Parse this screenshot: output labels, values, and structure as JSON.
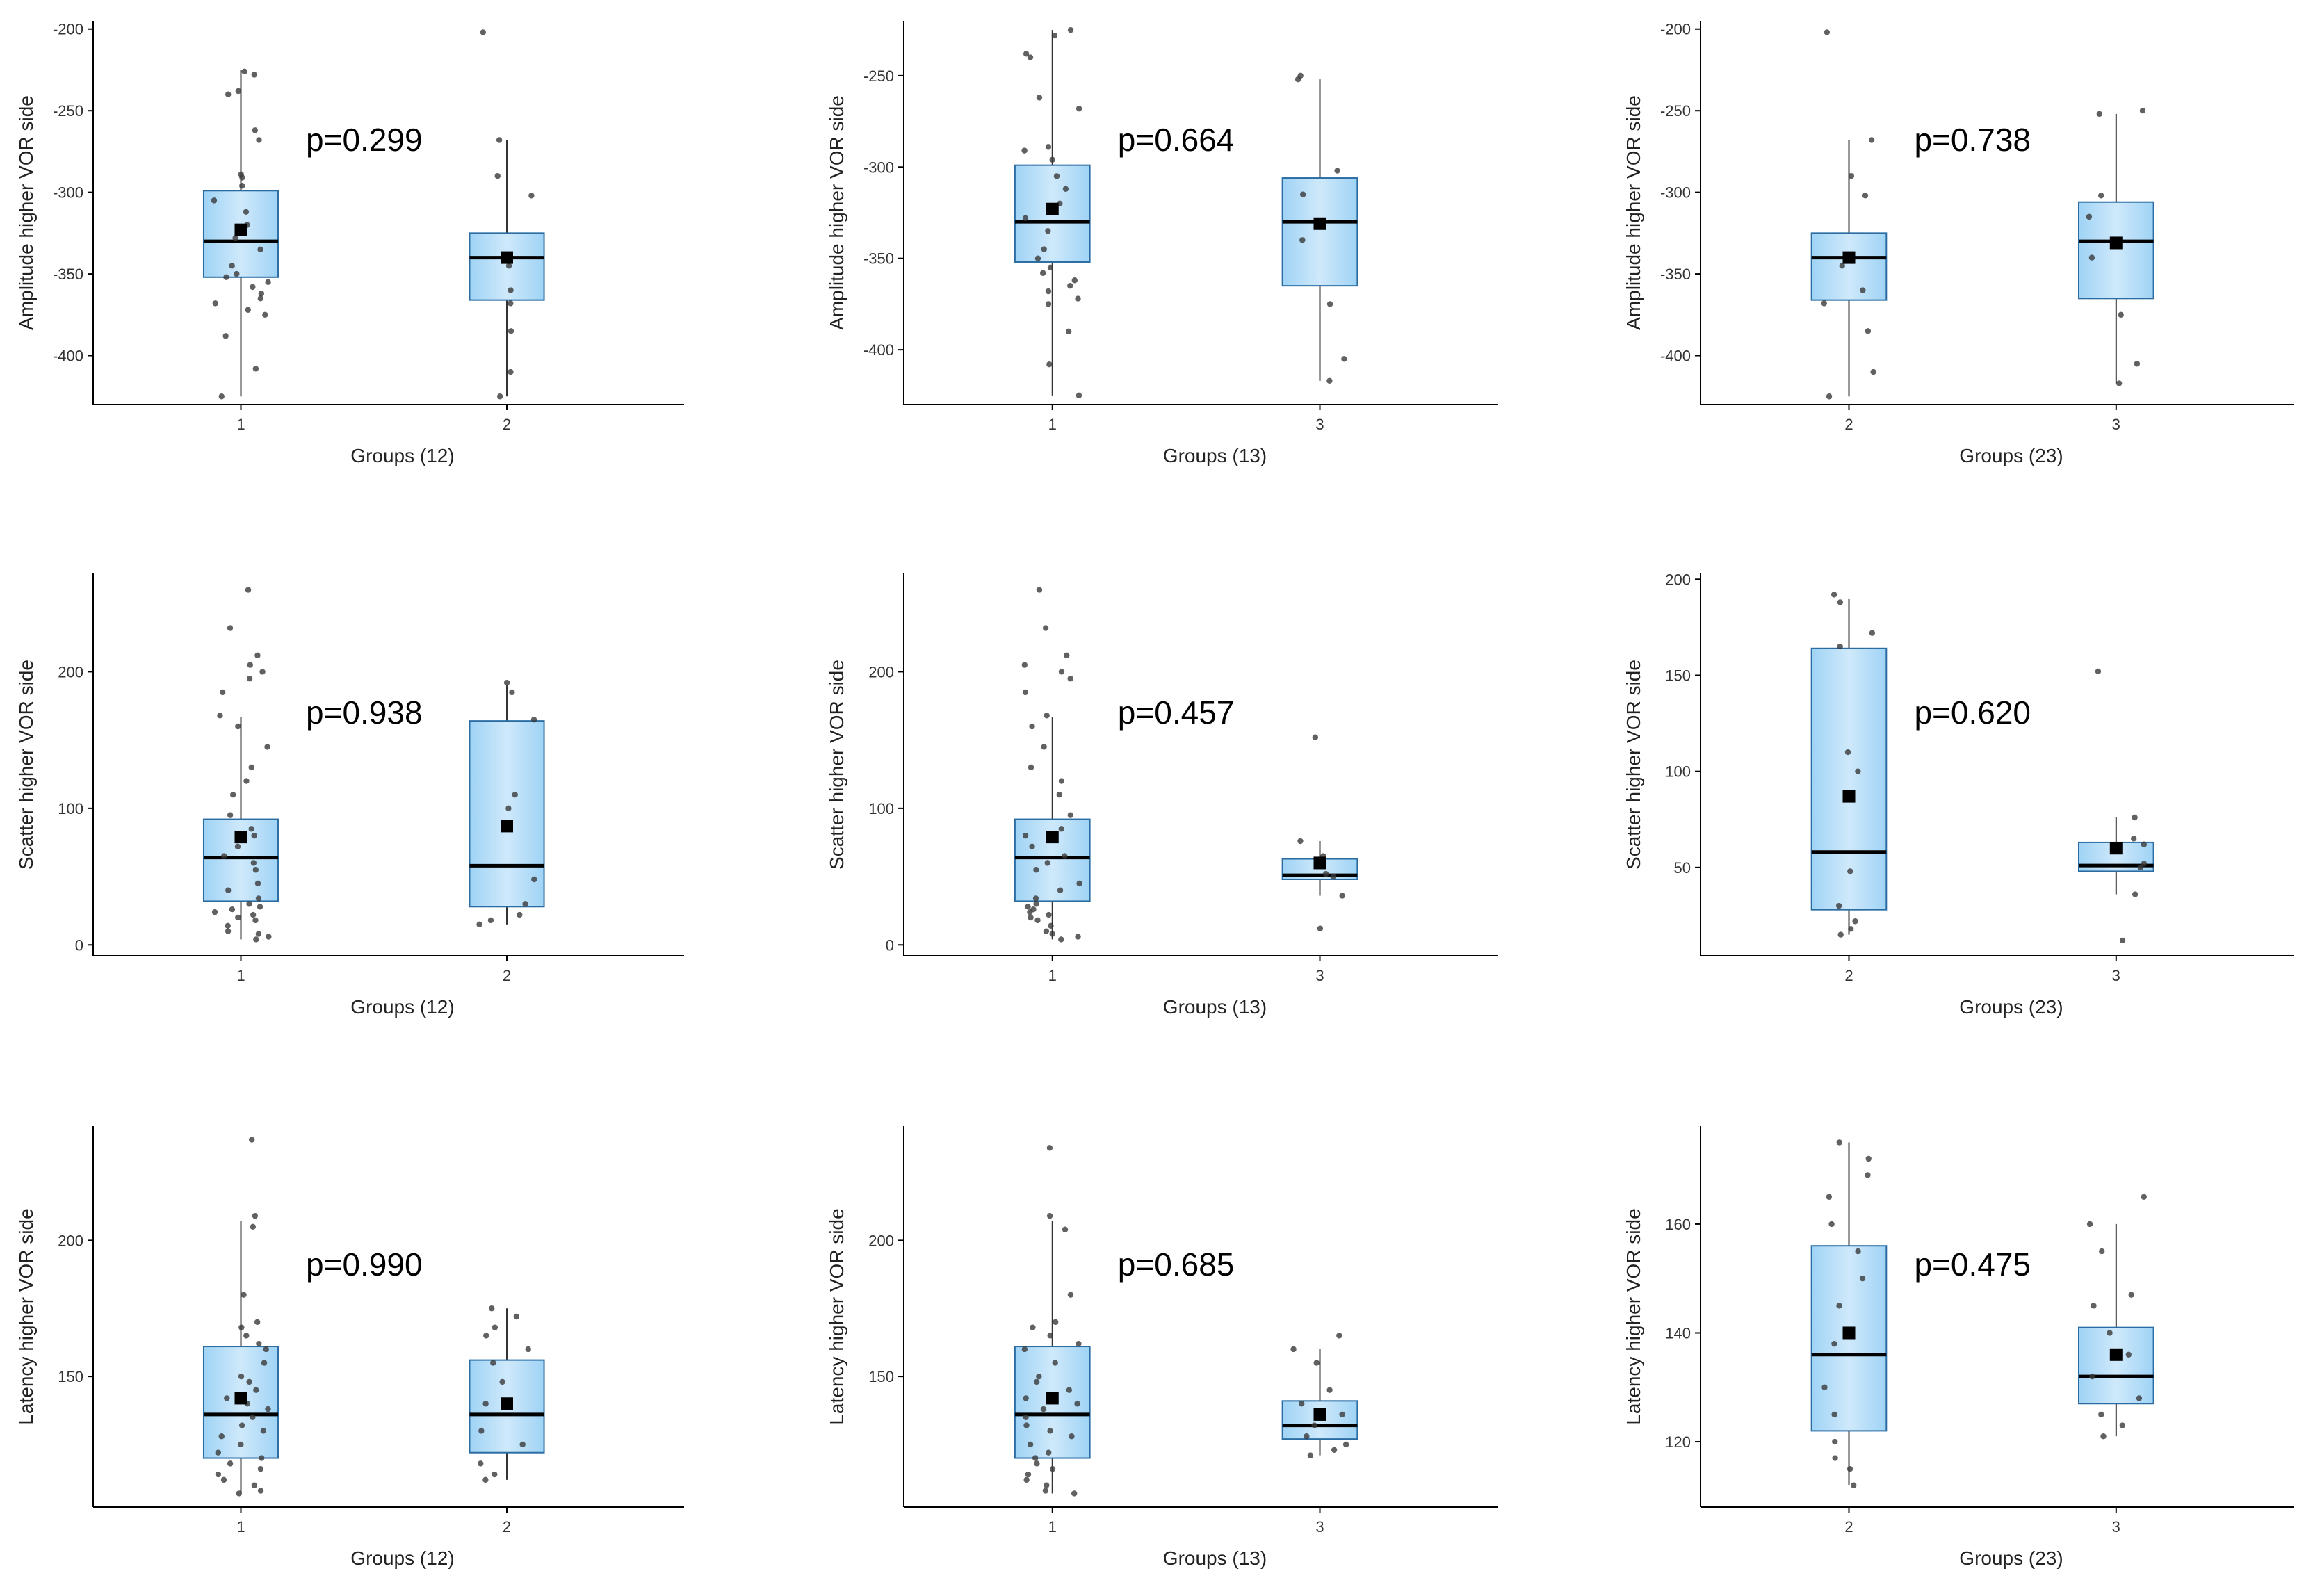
{
  "chart_data": [
    {
      "type": "box",
      "title": "",
      "xlabel": "Groups (12)",
      "ylabel": "Amplitude higher VOR side",
      "ylim": [
        -430,
        -195
      ],
      "yticks": [
        -200,
        -250,
        -300,
        -350,
        -400
      ],
      "ytick_labels": [
        "-200",
        "-250",
        "-300",
        "-350",
        "-400"
      ],
      "categories": [
        "1",
        "2"
      ],
      "p_value": "p=0.299",
      "boxes": [
        {
          "q1": -352,
          "median": -330,
          "q3": -299,
          "whisker_low": -425,
          "whisker_high": -225,
          "mean": -323,
          "points": [
            -228,
            -226,
            -238,
            -240,
            -268,
            -262,
            -289,
            -291,
            -296,
            -305,
            -312,
            -320,
            -328,
            -335,
            -345,
            -350,
            -352,
            -355,
            -358,
            -362,
            -365,
            -368,
            -372,
            -375,
            -388,
            -408,
            -425
          ]
        },
        {
          "q1": -366,
          "median": -340,
          "q3": -325,
          "whisker_low": -425,
          "whisker_high": -268,
          "mean": -340,
          "points": [
            -202,
            -268,
            -290,
            -302,
            -345,
            -360,
            -368,
            -385,
            -410,
            -425
          ]
        }
      ]
    },
    {
      "type": "box",
      "title": "",
      "xlabel": "Groups (13)",
      "ylabel": "Amplitude higher VOR side",
      "ylim": [
        -430,
        -220
      ],
      "yticks": [
        -250,
        -300,
        -350,
        -400
      ],
      "ytick_labels": [
        "-250",
        "-300",
        "-350",
        "-400"
      ],
      "categories": [
        "1",
        "3"
      ],
      "p_value": "p=0.664",
      "boxes": [
        {
          "q1": -352,
          "median": -330,
          "q3": -299,
          "whisker_low": -425,
          "whisker_high": -225,
          "mean": -323,
          "points": [
            -225,
            -228,
            -238,
            -240,
            -262,
            -268,
            -289,
            -291,
            -296,
            -305,
            -312,
            -320,
            -328,
            -335,
            -345,
            -350,
            -355,
            -358,
            -362,
            -365,
            -368,
            -372,
            -375,
            -390,
            -408,
            -425
          ]
        },
        {
          "q1": -365,
          "median": -330,
          "q3": -306,
          "whisker_low": -417,
          "whisker_high": -252,
          "mean": -331,
          "points": [
            -250,
            -252,
            -302,
            -315,
            -340,
            -375,
            -405,
            -417
          ]
        }
      ]
    },
    {
      "type": "box",
      "title": "",
      "xlabel": "Groups (23)",
      "ylabel": "Amplitude higher VOR side",
      "ylim": [
        -430,
        -195
      ],
      "yticks": [
        -200,
        -250,
        -300,
        -350,
        -400
      ],
      "ytick_labels": [
        "-200",
        "-250",
        "-300",
        "-350",
        "-400"
      ],
      "categories": [
        "2",
        "3"
      ],
      "p_value": "p=0.738",
      "boxes": [
        {
          "q1": -366,
          "median": -340,
          "q3": -325,
          "whisker_low": -425,
          "whisker_high": -268,
          "mean": -340,
          "points": [
            -202,
            -268,
            -290,
            -302,
            -345,
            -360,
            -368,
            -385,
            -410,
            -425
          ]
        },
        {
          "q1": -365,
          "median": -330,
          "q3": -306,
          "whisker_low": -417,
          "whisker_high": -252,
          "mean": -331,
          "points": [
            -250,
            -252,
            -302,
            -315,
            -340,
            -375,
            -405,
            -417
          ]
        }
      ]
    },
    {
      "type": "box",
      "title": "",
      "xlabel": "Groups (12)",
      "ylabel": "Scatter higher VOR side",
      "ylim": [
        -8,
        272
      ],
      "yticks": [
        0,
        100,
        200
      ],
      "ytick_labels": [
        "0",
        "100",
        "200"
      ],
      "categories": [
        "1",
        "2"
      ],
      "p_value": "p=0.938",
      "boxes": [
        {
          "q1": 32,
          "median": 64,
          "q3": 92,
          "whisker_low": 4,
          "whisker_high": 167,
          "mean": 79,
          "points": [
            4,
            6,
            8,
            10,
            14,
            18,
            20,
            22,
            24,
            26,
            28,
            30,
            34,
            40,
            45,
            55,
            60,
            65,
            72,
            80,
            85,
            95,
            110,
            120,
            130,
            145,
            160,
            168,
            185,
            195,
            200,
            205,
            212,
            232,
            260
          ]
        },
        {
          "q1": 28,
          "median": 58,
          "q3": 164,
          "whisker_low": 15,
          "whisker_high": 190,
          "mean": 87,
          "points": [
            15,
            18,
            22,
            30,
            48,
            100,
            110,
            165,
            185,
            192
          ]
        }
      ]
    },
    {
      "type": "box",
      "title": "",
      "xlabel": "Groups (13)",
      "ylabel": "Scatter higher VOR side",
      "ylim": [
        -8,
        272
      ],
      "yticks": [
        0,
        100,
        200
      ],
      "ytick_labels": [
        "0",
        "100",
        "200"
      ],
      "categories": [
        "1",
        "3"
      ],
      "p_value": "p=0.457",
      "boxes": [
        {
          "q1": 32,
          "median": 64,
          "q3": 92,
          "whisker_low": 4,
          "whisker_high": 167,
          "mean": 79,
          "points": [
            4,
            6,
            8,
            10,
            14,
            18,
            20,
            22,
            24,
            26,
            28,
            30,
            34,
            40,
            45,
            55,
            60,
            65,
            72,
            80,
            85,
            95,
            110,
            120,
            130,
            145,
            160,
            168,
            185,
            195,
            200,
            205,
            212,
            232,
            260
          ]
        },
        {
          "q1": 48,
          "median": 51,
          "q3": 63,
          "whisker_low": 36,
          "whisker_high": 76,
          "mean": 60,
          "points": [
            12,
            36,
            50,
            52,
            62,
            65,
            76,
            152
          ]
        }
      ]
    },
    {
      "type": "box",
      "title": "",
      "xlabel": "Groups (23)",
      "ylabel": "Scatter higher VOR side",
      "ylim": [
        4,
        203
      ],
      "yticks": [
        50,
        100,
        150,
        200
      ],
      "ytick_labels": [
        "50",
        "100",
        "150",
        "200"
      ],
      "categories": [
        "2",
        "3"
      ],
      "p_value": "p=0.620",
      "boxes": [
        {
          "q1": 28,
          "median": 58,
          "q3": 164,
          "whisker_low": 15,
          "whisker_high": 190,
          "mean": 87,
          "points": [
            15,
            18,
            22,
            30,
            48,
            100,
            110,
            165,
            172,
            188,
            192
          ]
        },
        {
          "q1": 48,
          "median": 51,
          "q3": 63,
          "whisker_low": 36,
          "whisker_high": 76,
          "mean": 60,
          "points": [
            12,
            36,
            50,
            52,
            62,
            65,
            76,
            152
          ]
        }
      ]
    },
    {
      "type": "box",
      "title": "",
      "xlabel": "Groups (12)",
      "ylabel": "Latency higher VOR side",
      "ylim": [
        102,
        242
      ],
      "yticks": [
        150,
        200
      ],
      "ytick_labels": [
        "150",
        "200"
      ],
      "categories": [
        "1",
        "2"
      ],
      "p_value": "p=0.990",
      "boxes": [
        {
          "q1": 120,
          "median": 136,
          "q3": 161,
          "whisker_low": 107,
          "whisker_high": 207,
          "mean": 142,
          "points": [
            107,
            108,
            110,
            112,
            114,
            116,
            118,
            120,
            122,
            125,
            128,
            130,
            132,
            135,
            138,
            140,
            142,
            145,
            148,
            150,
            155,
            160,
            162,
            165,
            168,
            170,
            180,
            205,
            209,
            237
          ]
        },
        {
          "q1": 122,
          "median": 136,
          "q3": 156,
          "whisker_low": 112,
          "whisker_high": 175,
          "mean": 140,
          "points": [
            112,
            114,
            118,
            125,
            130,
            140,
            148,
            155,
            160,
            165,
            168,
            172,
            175
          ]
        }
      ]
    },
    {
      "type": "box",
      "title": "",
      "xlabel": "Groups (13)",
      "ylabel": "Latency higher VOR side",
      "ylim": [
        102,
        242
      ],
      "yticks": [
        150,
        200
      ],
      "ytick_labels": [
        "150",
        "200"
      ],
      "categories": [
        "1",
        "3"
      ],
      "p_value": "p=0.685",
      "boxes": [
        {
          "q1": 120,
          "median": 136,
          "q3": 161,
          "whisker_low": 107,
          "whisker_high": 207,
          "mean": 142,
          "points": [
            107,
            108,
            110,
            112,
            114,
            116,
            118,
            120,
            122,
            125,
            128,
            130,
            132,
            135,
            138,
            140,
            142,
            145,
            148,
            150,
            155,
            160,
            162,
            165,
            168,
            170,
            180,
            204,
            209,
            234
          ]
        },
        {
          "q1": 127,
          "median": 132,
          "q3": 141,
          "whisker_low": 121,
          "whisker_high": 160,
          "mean": 136,
          "points": [
            121,
            123,
            125,
            128,
            132,
            136,
            140,
            145,
            155,
            160,
            165
          ]
        }
      ]
    },
    {
      "type": "box",
      "title": "",
      "xlabel": "Groups (23)",
      "ylabel": "Latency higher VOR side",
      "ylim": [
        108,
        178
      ],
      "yticks": [
        120,
        140,
        160
      ],
      "ytick_labels": [
        "120",
        "140",
        "160"
      ],
      "categories": [
        "2",
        "3"
      ],
      "p_value": "p=0.475",
      "boxes": [
        {
          "q1": 122,
          "median": 136,
          "q3": 156,
          "whisker_low": 112,
          "whisker_high": 175,
          "mean": 140,
          "points": [
            112,
            115,
            117,
            120,
            125,
            130,
            138,
            145,
            150,
            155,
            160,
            165,
            169,
            172,
            175
          ]
        },
        {
          "q1": 127,
          "median": 132,
          "q3": 141,
          "whisker_low": 121,
          "whisker_high": 160,
          "mean": 136,
          "points": [
            121,
            123,
            125,
            128,
            132,
            136,
            140,
            145,
            147,
            155,
            160,
            165
          ]
        }
      ]
    }
  ],
  "colors": {
    "box_fill": "#9fd3f5",
    "box_fill_light": "#cfe9fb",
    "box_stroke": "#2b6da3",
    "median": "#000000",
    "point": "#3a3a3a",
    "axis": "#000000",
    "text": "#222222"
  }
}
